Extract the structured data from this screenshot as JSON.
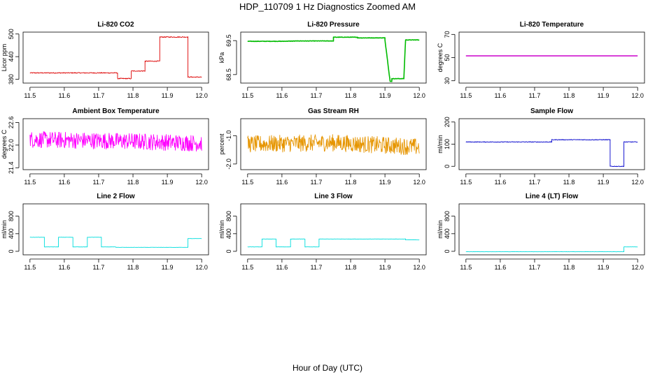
{
  "figure": {
    "title": "HDP_110709  1 Hz Diagnostics Zoomed AM",
    "xlabel": "Hour of Day (UTC)"
  },
  "chart_data": [
    {
      "type": "line",
      "title": "Li-820 CO2",
      "ylabel": "Licor ppm",
      "xlim": [
        11.48,
        12.02
      ],
      "ylim": [
        370,
        505
      ],
      "x_ticks": [
        "11.5",
        "11.6",
        "11.7",
        "11.8",
        "11.9",
        "12.0"
      ],
      "y_ticks": [
        {
          "value": 380,
          "label": "380"
        },
        {
          "value": 440,
          "label": "440"
        },
        {
          "value": 500,
          "label": "500"
        }
      ],
      "color": "#dd0000",
      "noise": 1.2,
      "series": [
        {
          "points": [
            [
              11.5,
              397
            ],
            [
              11.755,
              397
            ],
            [
              11.755,
              382
            ],
            [
              11.795,
              382
            ],
            [
              11.795,
              402
            ],
            [
              11.835,
              402
            ],
            [
              11.835,
              428
            ],
            [
              11.878,
              428
            ],
            [
              11.878,
              492
            ],
            [
              11.96,
              492
            ],
            [
              11.96,
              386
            ],
            [
              12.0,
              386
            ]
          ]
        }
      ]
    },
    {
      "type": "line",
      "title": "Li-820 Pressure",
      "ylabel": "kPa",
      "xlim": [
        11.48,
        12.02
      ],
      "ylim": [
        68.25,
        69.75
      ],
      "x_ticks": [
        "11.5",
        "11.6",
        "11.7",
        "11.8",
        "11.9",
        "12.0"
      ],
      "y_ticks": [
        {
          "value": 68.5,
          "label": "68.5"
        },
        {
          "value": 69.5,
          "label": "69.5"
        }
      ],
      "color": "#00bb00",
      "noise": 0.006,
      "series": [
        {
          "points": [
            [
              11.5,
              69.48
            ],
            [
              11.6,
              69.48
            ],
            [
              11.65,
              69.49
            ],
            [
              11.75,
              69.49
            ],
            [
              11.75,
              69.6
            ],
            [
              11.82,
              69.6
            ],
            [
              11.82,
              69.58
            ],
            [
              11.9,
              69.58
            ],
            [
              11.9,
              69.52
            ],
            [
              11.915,
              68.3
            ],
            [
              11.92,
              68.3
            ],
            [
              11.92,
              68.38
            ],
            [
              11.955,
              68.38
            ],
            [
              11.96,
              69.52
            ],
            [
              12.0,
              69.52
            ]
          ]
        }
      ]
    },
    {
      "type": "line",
      "title": "Li-820 Temperature",
      "ylabel": "degrees C",
      "xlim": [
        11.48,
        12.02
      ],
      "ylim": [
        28,
        72
      ],
      "x_ticks": [
        "11.5",
        "11.6",
        "11.7",
        "11.8",
        "11.9",
        "12.0"
      ],
      "y_ticks": [
        {
          "value": 30,
          "label": "30"
        },
        {
          "value": 50,
          "label": "50"
        },
        {
          "value": 70,
          "label": "70"
        }
      ],
      "color": "#cc00cc",
      "noise": 0,
      "series": [
        {
          "points": [
            [
              11.5,
              51.5
            ],
            [
              12.0,
              51.5
            ]
          ]
        }
      ]
    },
    {
      "type": "line",
      "title": "Ambient Box Temperature",
      "ylabel": "degrees C",
      "xlim": [
        11.48,
        12.02
      ],
      "ylim": [
        21.35,
        22.7
      ],
      "x_ticks": [
        "11.5",
        "11.6",
        "11.7",
        "11.8",
        "11.9",
        "12.0"
      ],
      "y_ticks": [
        {
          "value": 21.4,
          "label": "21.4"
        },
        {
          "value": 22.0,
          "label": "22.0"
        },
        {
          "value": 22.6,
          "label": "22.6"
        }
      ],
      "color": "#ff00ff",
      "noise": 0.22,
      "series": [
        {
          "points": [
            [
              11.5,
              22.15
            ],
            [
              11.8,
              22.1
            ],
            [
              12.0,
              22.05
            ]
          ]
        }
      ]
    },
    {
      "type": "line",
      "title": "Gas Stream RH",
      "ylabel": "percent",
      "xlim": [
        11.48,
        12.02
      ],
      "ylim": [
        -2.2,
        -0.4
      ],
      "x_ticks": [
        "11.5",
        "11.6",
        "11.7",
        "11.8",
        "11.9",
        "12.0"
      ],
      "y_ticks": [
        {
          "value": -2.0,
          "label": "-2.0"
        },
        {
          "value": -1.0,
          "label": "-1.0"
        }
      ],
      "color": "#e69500",
      "noise": 0.3,
      "series": [
        {
          "points": [
            [
              11.5,
              -1.3
            ],
            [
              11.75,
              -1.25
            ],
            [
              12.0,
              -1.4
            ]
          ]
        }
      ]
    },
    {
      "type": "line",
      "title": "Sample Flow",
      "ylabel": "ml/min",
      "xlim": [
        11.48,
        12.02
      ],
      "ylim": [
        -15,
        215
      ],
      "x_ticks": [
        "11.5",
        "11.6",
        "11.7",
        "11.8",
        "11.9",
        "12.0"
      ],
      "y_ticks": [
        {
          "value": 0,
          "label": "0"
        },
        {
          "value": 100,
          "label": "100"
        },
        {
          "value": 200,
          "label": "200"
        }
      ],
      "color": "#0000cc",
      "noise": 1.5,
      "series": [
        {
          "points": [
            [
              11.5,
              110
            ],
            [
              11.75,
              110
            ],
            [
              11.75,
              120
            ],
            [
              11.92,
              120
            ],
            [
              11.92,
              0
            ],
            [
              11.96,
              0
            ],
            [
              11.96,
              110
            ],
            [
              12.0,
              110
            ]
          ]
        }
      ]
    },
    {
      "type": "line",
      "title": "Line 2 Flow",
      "ylabel": "ml/min",
      "xlim": [
        11.48,
        12.02
      ],
      "ylim": [
        -80,
        1080
      ],
      "x_ticks": [
        "11.5",
        "11.6",
        "11.7",
        "11.8",
        "11.9",
        "12.0"
      ],
      "y_ticks": [
        {
          "value": 0,
          "label": "0"
        },
        {
          "value": 400,
          "label": "400"
        },
        {
          "value": 800,
          "label": "800"
        }
      ],
      "color": "#00dddd",
      "noise": 2,
      "series": [
        {
          "points": [
            [
              11.5,
              320
            ],
            [
              11.542,
              320
            ],
            [
              11.542,
              100
            ],
            [
              11.583,
              100
            ],
            [
              11.583,
              320
            ],
            [
              11.625,
              320
            ],
            [
              11.625,
              100
            ],
            [
              11.667,
              100
            ],
            [
              11.667,
              320
            ],
            [
              11.708,
              320
            ],
            [
              11.708,
              100
            ],
            [
              11.75,
              100
            ],
            [
              11.75,
              90
            ],
            [
              11.96,
              90
            ],
            [
              11.96,
              290
            ],
            [
              12.0,
              290
            ]
          ]
        }
      ]
    },
    {
      "type": "line",
      "title": "Line 3 Flow",
      "ylabel": "ml/min",
      "xlim": [
        11.48,
        12.02
      ],
      "ylim": [
        -80,
        1080
      ],
      "x_ticks": [
        "11.5",
        "11.6",
        "11.7",
        "11.8",
        "11.9",
        "12.0"
      ],
      "y_ticks": [
        {
          "value": 0,
          "label": "0"
        },
        {
          "value": 400,
          "label": "400"
        },
        {
          "value": 800,
          "label": "800"
        }
      ],
      "color": "#00dddd",
      "noise": 2,
      "series": [
        {
          "points": [
            [
              11.5,
              100
            ],
            [
              11.542,
              100
            ],
            [
              11.542,
              280
            ],
            [
              11.583,
              280
            ],
            [
              11.583,
              100
            ],
            [
              11.625,
              100
            ],
            [
              11.625,
              280
            ],
            [
              11.667,
              280
            ],
            [
              11.667,
              100
            ],
            [
              11.708,
              100
            ],
            [
              11.708,
              280
            ],
            [
              11.96,
              280
            ],
            [
              11.96,
              260
            ],
            [
              12.0,
              260
            ]
          ]
        }
      ]
    },
    {
      "type": "line",
      "title": "Line 4 (LT) Flow",
      "ylabel": "ml/min",
      "xlim": [
        11.48,
        12.02
      ],
      "ylim": [
        -80,
        1080
      ],
      "x_ticks": [
        "11.5",
        "11.6",
        "11.7",
        "11.8",
        "11.9",
        "12.0"
      ],
      "y_ticks": [
        {
          "value": 0,
          "label": "0"
        },
        {
          "value": 400,
          "label": "400"
        },
        {
          "value": 800,
          "label": "800"
        }
      ],
      "color": "#00dddd",
      "noise": 1.5,
      "series": [
        {
          "points": [
            [
              11.5,
              -10
            ],
            [
              11.96,
              -10
            ],
            [
              11.96,
              100
            ],
            [
              12.0,
              100
            ]
          ]
        }
      ]
    }
  ]
}
